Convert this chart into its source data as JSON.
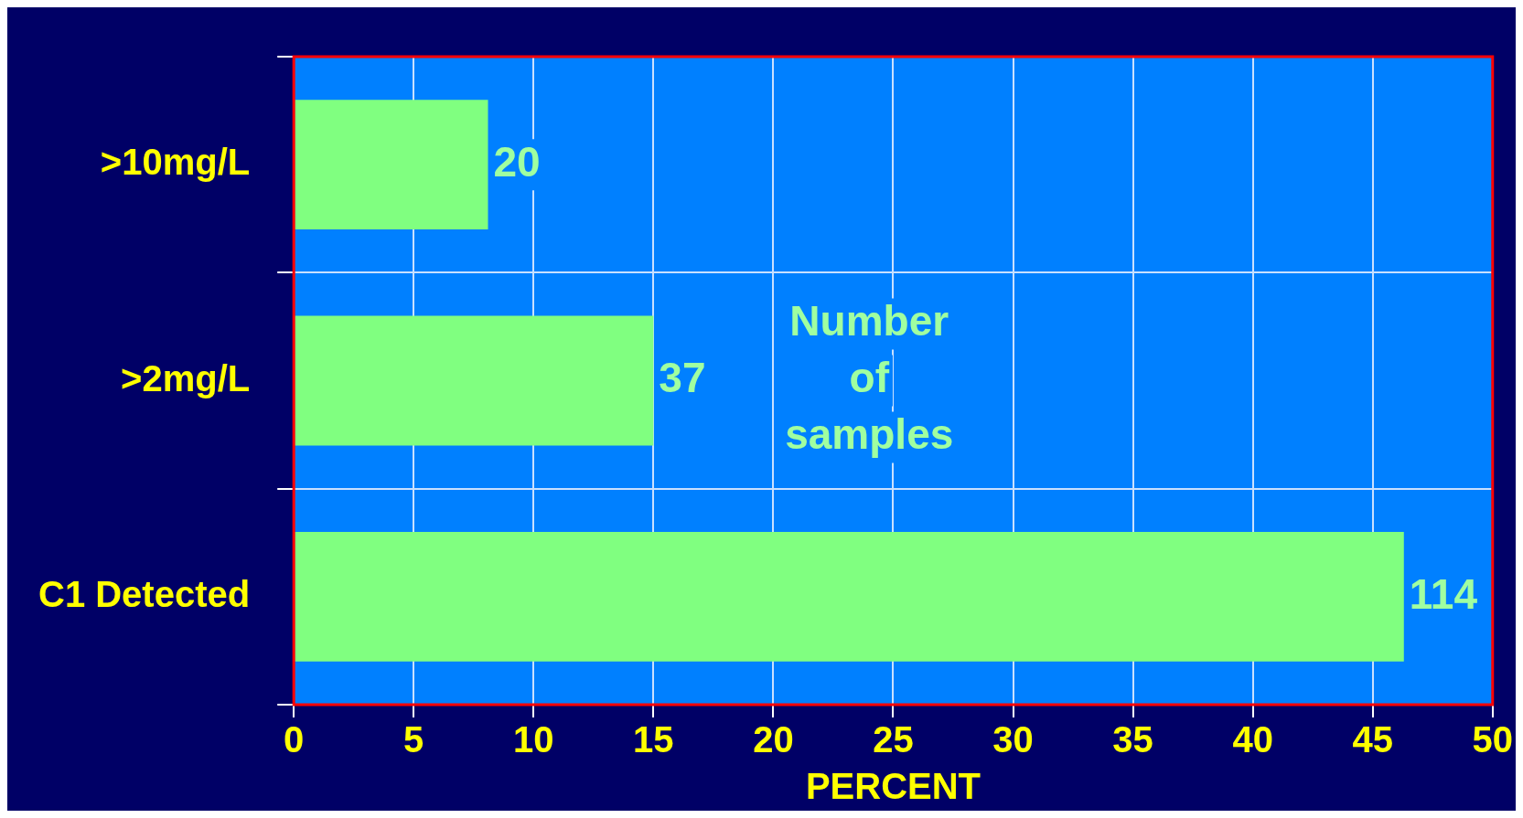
{
  "chart_data": {
    "type": "bar",
    "orientation": "horizontal",
    "xlabel": "PERCENT",
    "categories": [
      ">10mg/L",
      ">2mg/L",
      "C1 Detected"
    ],
    "values": [
      8.1,
      15.0,
      46.3
    ],
    "color": "#80ff80",
    "xlim": [
      0,
      50
    ],
    "xticks": [
      0,
      5,
      10,
      15,
      20,
      25,
      30,
      35,
      40,
      45,
      50
    ],
    "grid": true,
    "legend": false,
    "annotations": [
      {
        "text": "20",
        "x": 8.1,
        "y": ">10mg/L"
      },
      {
        "text": "37",
        "x": 15.0,
        "y": ">2mg/L"
      },
      {
        "text": "114",
        "x": 46.3,
        "y": "C1 Detected"
      },
      "Number of samples"
    ]
  }
}
